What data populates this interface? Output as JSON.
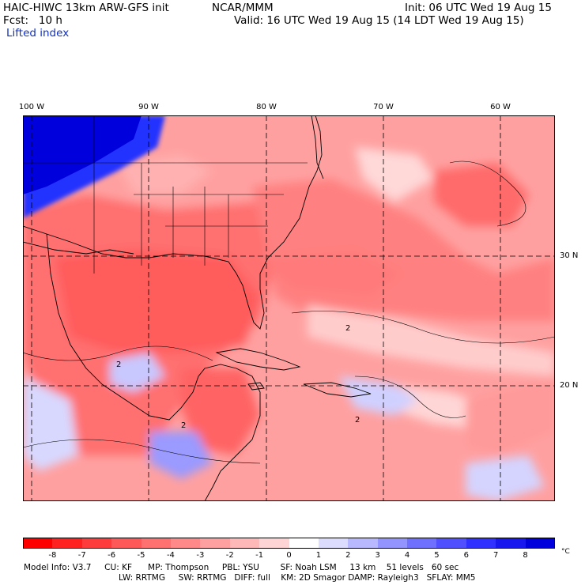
{
  "header": {
    "model": "HAIC-HIWC 13km ARW-GFS init",
    "org": "NCAR/MMM",
    "init": "Init: 06 UTC Wed 19 Aug 15",
    "fcst": "Fcst:   10 h",
    "valid": "Valid: 16 UTC Wed 19 Aug 15 (14 LDT Wed 19 Aug 15)",
    "field": "Lifted index"
  },
  "map": {
    "lon_labels": [
      "100 W",
      "90 W",
      "80 W",
      "70 W",
      "60 W"
    ],
    "lat_labels": [
      "30 N",
      "20 N"
    ],
    "contour_labels": [
      "2",
      "2",
      "2",
      "2"
    ]
  },
  "colorbar": {
    "unit": "°C",
    "labels": [
      "-8",
      "-7",
      "-6",
      "-5",
      "-4",
      "-3",
      "-2",
      "-1",
      "0",
      "1",
      "2",
      "3",
      "4",
      "5",
      "6",
      "7",
      "8"
    ],
    "colors": [
      "#ff0000",
      "#ff2020",
      "#ff3c3c",
      "#ff5858",
      "#ff7070",
      "#ff8888",
      "#ffa0a0",
      "#ffb8b8",
      "#ffd4d4",
      "#ffffff",
      "#dcdcff",
      "#b8b8ff",
      "#9494ff",
      "#7070ff",
      "#5050ff",
      "#3030ff",
      "#1818ee",
      "#0000dd"
    ]
  },
  "model_info": {
    "line1": "Model Info: V3.7     CU: KF      MP: Thompson     PBL: YSU        SF: Noah LSM     13 km    51 levels   60 sec",
    "line2": "LW: RRTMG     SW: RRTMG   DIFF: full    KM: 2D Smagor DAMP: Rayleigh3   SFLAY: MM5"
  }
}
